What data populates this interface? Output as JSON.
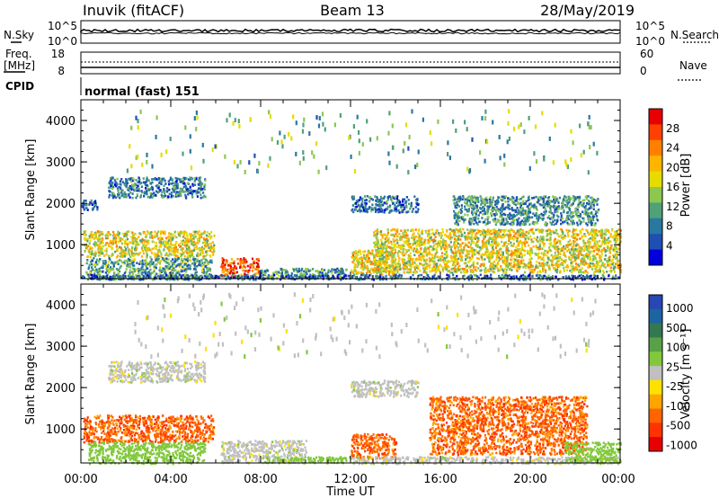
{
  "header": {
    "station": "Inuvik (fitACF)",
    "beam": "Beam 13",
    "date": "28/May/2019"
  },
  "top_panels": {
    "nsky_label": "N.Sky",
    "nsky_ticks": [
      "10^5",
      "10^0"
    ],
    "nsearch_label": "N.Search",
    "nsearch_ticks": [
      "10^5",
      "10^0"
    ],
    "freq_label": "Freq.",
    "freq_unit": "[MHz]",
    "freq_ticks": [
      "18",
      "8"
    ],
    "nave_label": "Nave",
    "nave_ticks": [
      "60",
      "0"
    ],
    "cpid_label": "CPID",
    "cpid_value": "normal (fast) 151"
  },
  "axes": {
    "ylabel": "Slant Range [km]",
    "yticks": [
      "4000",
      "3000",
      "2000",
      "1000"
    ],
    "xlabel": "Time UT",
    "xticks": [
      "00:00",
      "04:00",
      "08:00",
      "12:00",
      "16:00",
      "20:00",
      "00:00"
    ]
  },
  "chart_data": [
    {
      "type": "heatmap",
      "title": "",
      "xlabel": "Time UT",
      "ylabel": "Slant Range [km]",
      "x_range_hours": [
        0,
        24
      ],
      "y_range_km": [
        180,
        4500
      ],
      "colorbar_label": "Power [dB]",
      "colorbar_ticks": [
        "28",
        "24",
        "20",
        "16",
        "12",
        "8",
        "4"
      ],
      "colorbar_colors": [
        "#e60000",
        "#ff4000",
        "#ff8000",
        "#ffb400",
        "#e6dc00",
        "#8cc850",
        "#50a078",
        "#2878a0",
        "#1e50b4",
        "#0000dc"
      ],
      "regions": [
        {
          "t0": 0.1,
          "t1": 5.9,
          "r0": 720,
          "r1": 1350,
          "level": 18
        },
        {
          "t0": 0.2,
          "t1": 5.8,
          "r0": 180,
          "r1": 700,
          "level": 10
        },
        {
          "t0": 1.2,
          "t1": 5.5,
          "r0": 2150,
          "r1": 2650,
          "level": 7
        },
        {
          "t0": 0.0,
          "t1": 0.7,
          "r0": 1850,
          "r1": 2100,
          "level": 5
        },
        {
          "t0": 6.2,
          "t1": 7.9,
          "r0": 250,
          "r1": 700,
          "level": 28
        },
        {
          "t0": 7.9,
          "t1": 11.8,
          "r0": 200,
          "r1": 450,
          "level": 10
        },
        {
          "t0": 12.0,
          "t1": 14.0,
          "r0": 300,
          "r1": 900,
          "level": 20
        },
        {
          "t0": 12.0,
          "t1": 15.0,
          "r0": 1800,
          "r1": 2200,
          "level": 6
        },
        {
          "t0": 13.0,
          "t1": 24.0,
          "r0": 350,
          "r1": 1400,
          "level": 18
        },
        {
          "t0": 16.5,
          "t1": 23.0,
          "r0": 1500,
          "r1": 2200,
          "level": 9
        },
        {
          "t0": 0.0,
          "t1": 24.0,
          "r0": 180,
          "r1": 300,
          "level": 6
        },
        {
          "t0": 2.0,
          "t1": 23.0,
          "r0": 2800,
          "r1": 4300,
          "level": 12
        }
      ]
    },
    {
      "type": "heatmap",
      "title": "",
      "xlabel": "Time UT",
      "ylabel": "Slant Range [km]",
      "x_range_hours": [
        0,
        24
      ],
      "y_range_km": [
        180,
        4500
      ],
      "colorbar_label": "Velocity [m s⁻¹]",
      "colorbar_ticks": [
        "1000",
        "500",
        "100",
        "25",
        "-25",
        "-100",
        "-500",
        "-1000"
      ],
      "colorbar_colors": [
        "#2846b4",
        "#1e64a0",
        "#327850",
        "#5aa046",
        "#82c83c",
        "#c0c0c0",
        "#ffe100",
        "#ffa500",
        "#ff6400",
        "#ff3200",
        "#e60000"
      ],
      "regions": [
        {
          "t0": 0.1,
          "t1": 5.9,
          "r0": 700,
          "r1": 1350,
          "level": -400
        },
        {
          "t0": 0.3,
          "t1": 5.5,
          "r0": 180,
          "r1": 700,
          "level": 60
        },
        {
          "t0": 1.2,
          "t1": 5.5,
          "r0": 2150,
          "r1": 2650,
          "level": 0
        },
        {
          "t0": 6.2,
          "t1": 10.0,
          "r0": 200,
          "r1": 750,
          "level": 0
        },
        {
          "t0": 8.0,
          "t1": 12.0,
          "r0": 200,
          "r1": 350,
          "level": 60
        },
        {
          "t0": 12.0,
          "t1": 14.0,
          "r0": 300,
          "r1": 900,
          "level": -400
        },
        {
          "t0": 12.0,
          "t1": 15.0,
          "r0": 1800,
          "r1": 2200,
          "level": 0
        },
        {
          "t0": 12.0,
          "t1": 24.0,
          "r0": 180,
          "r1": 350,
          "level": 0
        },
        {
          "t0": 15.5,
          "t1": 22.5,
          "r0": 400,
          "r1": 1800,
          "level": -400
        },
        {
          "t0": 21.5,
          "t1": 24.0,
          "r0": 200,
          "r1": 700,
          "level": 60
        },
        {
          "t0": 2.0,
          "t1": 23.0,
          "r0": 2800,
          "r1": 4300,
          "level": 0
        }
      ]
    }
  ]
}
